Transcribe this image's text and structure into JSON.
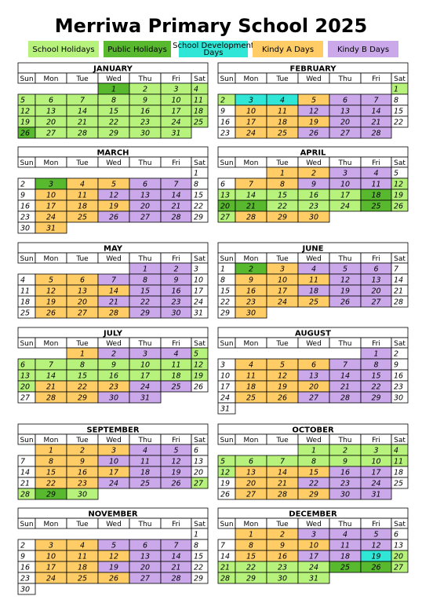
{
  "title": "Merriwa Primary School 2025",
  "legend": [
    {
      "label": "School Holidays",
      "color": "#b6f27c"
    },
    {
      "label": "Public Holidays",
      "color": "#58b82e"
    },
    {
      "label": "School Development Days",
      "color": "#30e6d6"
    },
    {
      "label": "Kindy A Days",
      "color": "#ffcc66"
    },
    {
      "label": "Kindy B Days",
      "color": "#caa8ea"
    }
  ],
  "day_headers": [
    "Sun",
    "Mon",
    "Tue",
    "Wed",
    "Thu",
    "Fri",
    "Sat"
  ],
  "months": [
    {
      "name": "JANUARY",
      "weeks": [
        [
          null,
          null,
          null,
          1,
          2,
          3,
          4
        ],
        [
          5,
          6,
          7,
          8,
          9,
          10,
          11
        ],
        [
          12,
          13,
          14,
          15,
          16,
          17,
          18
        ],
        [
          19,
          20,
          21,
          22,
          23,
          24,
          25
        ],
        [
          26,
          27,
          28,
          29,
          30,
          31,
          null
        ]
      ],
      "fills": [
        [
          null,
          null,
          null,
          1,
          0,
          0,
          0
        ],
        [
          0,
          0,
          0,
          0,
          0,
          0,
          0
        ],
        [
          0,
          0,
          0,
          0,
          0,
          0,
          0
        ],
        [
          0,
          0,
          0,
          0,
          0,
          0,
          0
        ],
        [
          1,
          0,
          0,
          0,
          0,
          0,
          null
        ]
      ]
    },
    {
      "name": "FEBRUARY",
      "weeks": [
        [
          null,
          null,
          null,
          null,
          null,
          null,
          1
        ],
        [
          2,
          3,
          4,
          5,
          6,
          7,
          8
        ],
        [
          9,
          10,
          11,
          12,
          13,
          14,
          15
        ],
        [
          16,
          17,
          18,
          19,
          20,
          21,
          22
        ],
        [
          23,
          24,
          25,
          26,
          27,
          28,
          null
        ]
      ],
      "fills": [
        [
          null,
          null,
          null,
          null,
          null,
          null,
          0
        ],
        [
          0,
          2,
          2,
          3,
          4,
          4,
          null
        ],
        [
          null,
          3,
          3,
          4,
          4,
          4,
          null
        ],
        [
          null,
          3,
          3,
          3,
          4,
          4,
          null
        ],
        [
          null,
          3,
          3,
          4,
          4,
          4,
          null
        ]
      ]
    },
    {
      "name": "MARCH",
      "weeks": [
        [
          null,
          null,
          null,
          null,
          null,
          null,
          1
        ],
        [
          2,
          3,
          4,
          5,
          6,
          7,
          8
        ],
        [
          9,
          10,
          11,
          12,
          13,
          14,
          15
        ],
        [
          16,
          17,
          18,
          19,
          20,
          21,
          22
        ],
        [
          23,
          24,
          25,
          26,
          27,
          28,
          29
        ],
        [
          30,
          31,
          null,
          null,
          null,
          null,
          null
        ]
      ],
      "fills": [
        [
          null,
          null,
          null,
          null,
          null,
          null,
          null
        ],
        [
          null,
          1,
          3,
          3,
          4,
          4,
          null
        ],
        [
          null,
          3,
          3,
          4,
          4,
          4,
          null
        ],
        [
          null,
          3,
          3,
          3,
          4,
          4,
          null
        ],
        [
          null,
          3,
          3,
          4,
          4,
          4,
          null
        ],
        [
          null,
          3,
          null,
          null,
          null,
          null,
          null
        ]
      ]
    },
    {
      "name": "APRIL",
      "weeks": [
        [
          null,
          null,
          1,
          2,
          3,
          4,
          5
        ],
        [
          6,
          7,
          8,
          9,
          10,
          11,
          12
        ],
        [
          13,
          14,
          15,
          16,
          17,
          18,
          19
        ],
        [
          20,
          21,
          22,
          23,
          24,
          25,
          26
        ],
        [
          27,
          28,
          29,
          30,
          null,
          null,
          null
        ]
      ],
      "fills": [
        [
          null,
          null,
          3,
          3,
          4,
          4,
          null
        ],
        [
          null,
          3,
          3,
          4,
          4,
          4,
          0
        ],
        [
          0,
          0,
          0,
          0,
          0,
          1,
          0
        ],
        [
          1,
          1,
          0,
          0,
          0,
          1,
          0
        ],
        [
          0,
          3,
          3,
          3,
          null,
          null,
          null
        ]
      ]
    },
    {
      "name": "MAY",
      "weeks": [
        [
          null,
          null,
          null,
          null,
          1,
          2,
          3
        ],
        [
          4,
          5,
          6,
          7,
          8,
          9,
          10
        ],
        [
          11,
          12,
          13,
          14,
          15,
          16,
          17
        ],
        [
          18,
          19,
          20,
          21,
          22,
          23,
          24
        ],
        [
          25,
          26,
          27,
          28,
          29,
          30,
          31
        ]
      ],
      "fills": [
        [
          null,
          null,
          null,
          null,
          4,
          4,
          null
        ],
        [
          null,
          3,
          3,
          4,
          4,
          4,
          null
        ],
        [
          null,
          3,
          3,
          3,
          4,
          4,
          null
        ],
        [
          null,
          3,
          3,
          4,
          4,
          4,
          null
        ],
        [
          null,
          3,
          3,
          3,
          4,
          4,
          null
        ]
      ]
    },
    {
      "name": "JUNE",
      "weeks": [
        [
          1,
          2,
          3,
          4,
          5,
          6,
          7
        ],
        [
          8,
          9,
          10,
          11,
          12,
          13,
          14
        ],
        [
          15,
          16,
          17,
          18,
          19,
          20,
          21
        ],
        [
          22,
          23,
          24,
          25,
          26,
          27,
          28
        ],
        [
          29,
          30,
          null,
          null,
          null,
          null,
          null
        ]
      ],
      "fills": [
        [
          null,
          1,
          3,
          4,
          4,
          4,
          null
        ],
        [
          null,
          3,
          3,
          3,
          4,
          4,
          null
        ],
        [
          null,
          3,
          3,
          4,
          4,
          4,
          null
        ],
        [
          null,
          3,
          3,
          3,
          4,
          4,
          null
        ],
        [
          null,
          3,
          null,
          null,
          null,
          null,
          null
        ]
      ]
    },
    {
      "name": "JULY",
      "weeks": [
        [
          null,
          null,
          1,
          2,
          3,
          4,
          5
        ],
        [
          6,
          7,
          8,
          9,
          10,
          11,
          12
        ],
        [
          13,
          14,
          15,
          16,
          17,
          18,
          19
        ],
        [
          20,
          21,
          22,
          23,
          24,
          25,
          26
        ],
        [
          27,
          28,
          29,
          30,
          31,
          null,
          null
        ]
      ],
      "fills": [
        [
          null,
          null,
          3,
          4,
          4,
          4,
          0
        ],
        [
          0,
          0,
          0,
          0,
          0,
          0,
          0
        ],
        [
          0,
          0,
          0,
          0,
          0,
          0,
          0
        ],
        [
          0,
          3,
          3,
          3,
          4,
          4,
          null
        ],
        [
          null,
          3,
          3,
          4,
          4,
          null,
          null
        ]
      ]
    },
    {
      "name": "AUGUST",
      "weeks": [
        [
          null,
          null,
          null,
          null,
          null,
          1,
          2
        ],
        [
          3,
          4,
          5,
          6,
          7,
          8,
          9
        ],
        [
          10,
          11,
          12,
          13,
          14,
          15,
          16
        ],
        [
          17,
          18,
          19,
          20,
          21,
          22,
          23
        ],
        [
          24,
          25,
          26,
          27,
          28,
          29,
          30
        ],
        [
          31,
          null,
          null,
          null,
          null,
          null,
          null
        ]
      ],
      "fills": [
        [
          null,
          null,
          null,
          null,
          null,
          4,
          null
        ],
        [
          null,
          3,
          3,
          3,
          4,
          4,
          null
        ],
        [
          null,
          3,
          3,
          4,
          4,
          4,
          null
        ],
        [
          null,
          3,
          3,
          3,
          4,
          4,
          null
        ],
        [
          null,
          3,
          3,
          4,
          4,
          4,
          null
        ],
        [
          null,
          null,
          null,
          null,
          null,
          null,
          null
        ]
      ]
    },
    {
      "name": "SEPTEMBER",
      "weeks": [
        [
          null,
          1,
          2,
          3,
          4,
          5,
          6
        ],
        [
          7,
          8,
          9,
          10,
          11,
          12,
          13
        ],
        [
          14,
          15,
          16,
          17,
          18,
          19,
          20
        ],
        [
          21,
          22,
          23,
          24,
          25,
          26,
          27
        ],
        [
          28,
          29,
          30,
          null,
          null,
          null,
          null
        ]
      ],
      "fills": [
        [
          null,
          3,
          3,
          3,
          4,
          4,
          null
        ],
        [
          null,
          3,
          3,
          4,
          4,
          4,
          null
        ],
        [
          null,
          3,
          3,
          3,
          4,
          4,
          null
        ],
        [
          null,
          3,
          3,
          4,
          4,
          4,
          0
        ],
        [
          0,
          1,
          0,
          null,
          null,
          null,
          null
        ]
      ]
    },
    {
      "name": "OCTOBER",
      "weeks": [
        [
          null,
          null,
          null,
          1,
          2,
          3,
          4
        ],
        [
          5,
          6,
          7,
          8,
          9,
          10,
          11
        ],
        [
          12,
          13,
          14,
          15,
          16,
          17,
          18
        ],
        [
          19,
          20,
          21,
          22,
          23,
          24,
          25
        ],
        [
          26,
          27,
          28,
          29,
          30,
          31,
          null
        ]
      ],
      "fills": [
        [
          null,
          null,
          null,
          0,
          0,
          0,
          0
        ],
        [
          0,
          0,
          0,
          0,
          0,
          0,
          0
        ],
        [
          0,
          3,
          3,
          3,
          4,
          4,
          null
        ],
        [
          null,
          3,
          3,
          4,
          4,
          4,
          null
        ],
        [
          null,
          3,
          3,
          3,
          4,
          4,
          null
        ]
      ]
    },
    {
      "name": "NOVEMBER",
      "weeks": [
        [
          null,
          null,
          null,
          null,
          null,
          null,
          1
        ],
        [
          2,
          3,
          4,
          5,
          6,
          7,
          8
        ],
        [
          9,
          10,
          11,
          12,
          13,
          14,
          15
        ],
        [
          16,
          17,
          18,
          19,
          20,
          21,
          22
        ],
        [
          23,
          24,
          25,
          26,
          27,
          28,
          29
        ],
        [
          30,
          null,
          null,
          null,
          null,
          null,
          null
        ]
      ],
      "fills": [
        [
          null,
          null,
          null,
          null,
          null,
          null,
          null
        ],
        [
          null,
          3,
          3,
          4,
          4,
          4,
          null
        ],
        [
          null,
          3,
          3,
          3,
          4,
          4,
          null
        ],
        [
          null,
          3,
          3,
          4,
          4,
          4,
          null
        ],
        [
          null,
          3,
          3,
          3,
          4,
          4,
          null
        ],
        [
          null,
          null,
          null,
          null,
          null,
          null,
          null
        ]
      ]
    },
    {
      "name": "DECEMBER",
      "weeks": [
        [
          null,
          1,
          2,
          3,
          4,
          5,
          6
        ],
        [
          7,
          8,
          9,
          10,
          11,
          12,
          13
        ],
        [
          14,
          15,
          16,
          17,
          18,
          19,
          20
        ],
        [
          21,
          22,
          23,
          24,
          25,
          26,
          27
        ],
        [
          28,
          29,
          30,
          31,
          null,
          null,
          null
        ]
      ],
      "fills": [
        [
          null,
          3,
          3,
          4,
          4,
          4,
          null
        ],
        [
          null,
          3,
          3,
          3,
          4,
          4,
          null
        ],
        [
          null,
          3,
          3,
          4,
          4,
          2,
          0
        ],
        [
          0,
          0,
          0,
          0,
          1,
          1,
          0
        ],
        [
          0,
          0,
          0,
          0,
          null,
          null,
          null
        ]
      ]
    }
  ]
}
